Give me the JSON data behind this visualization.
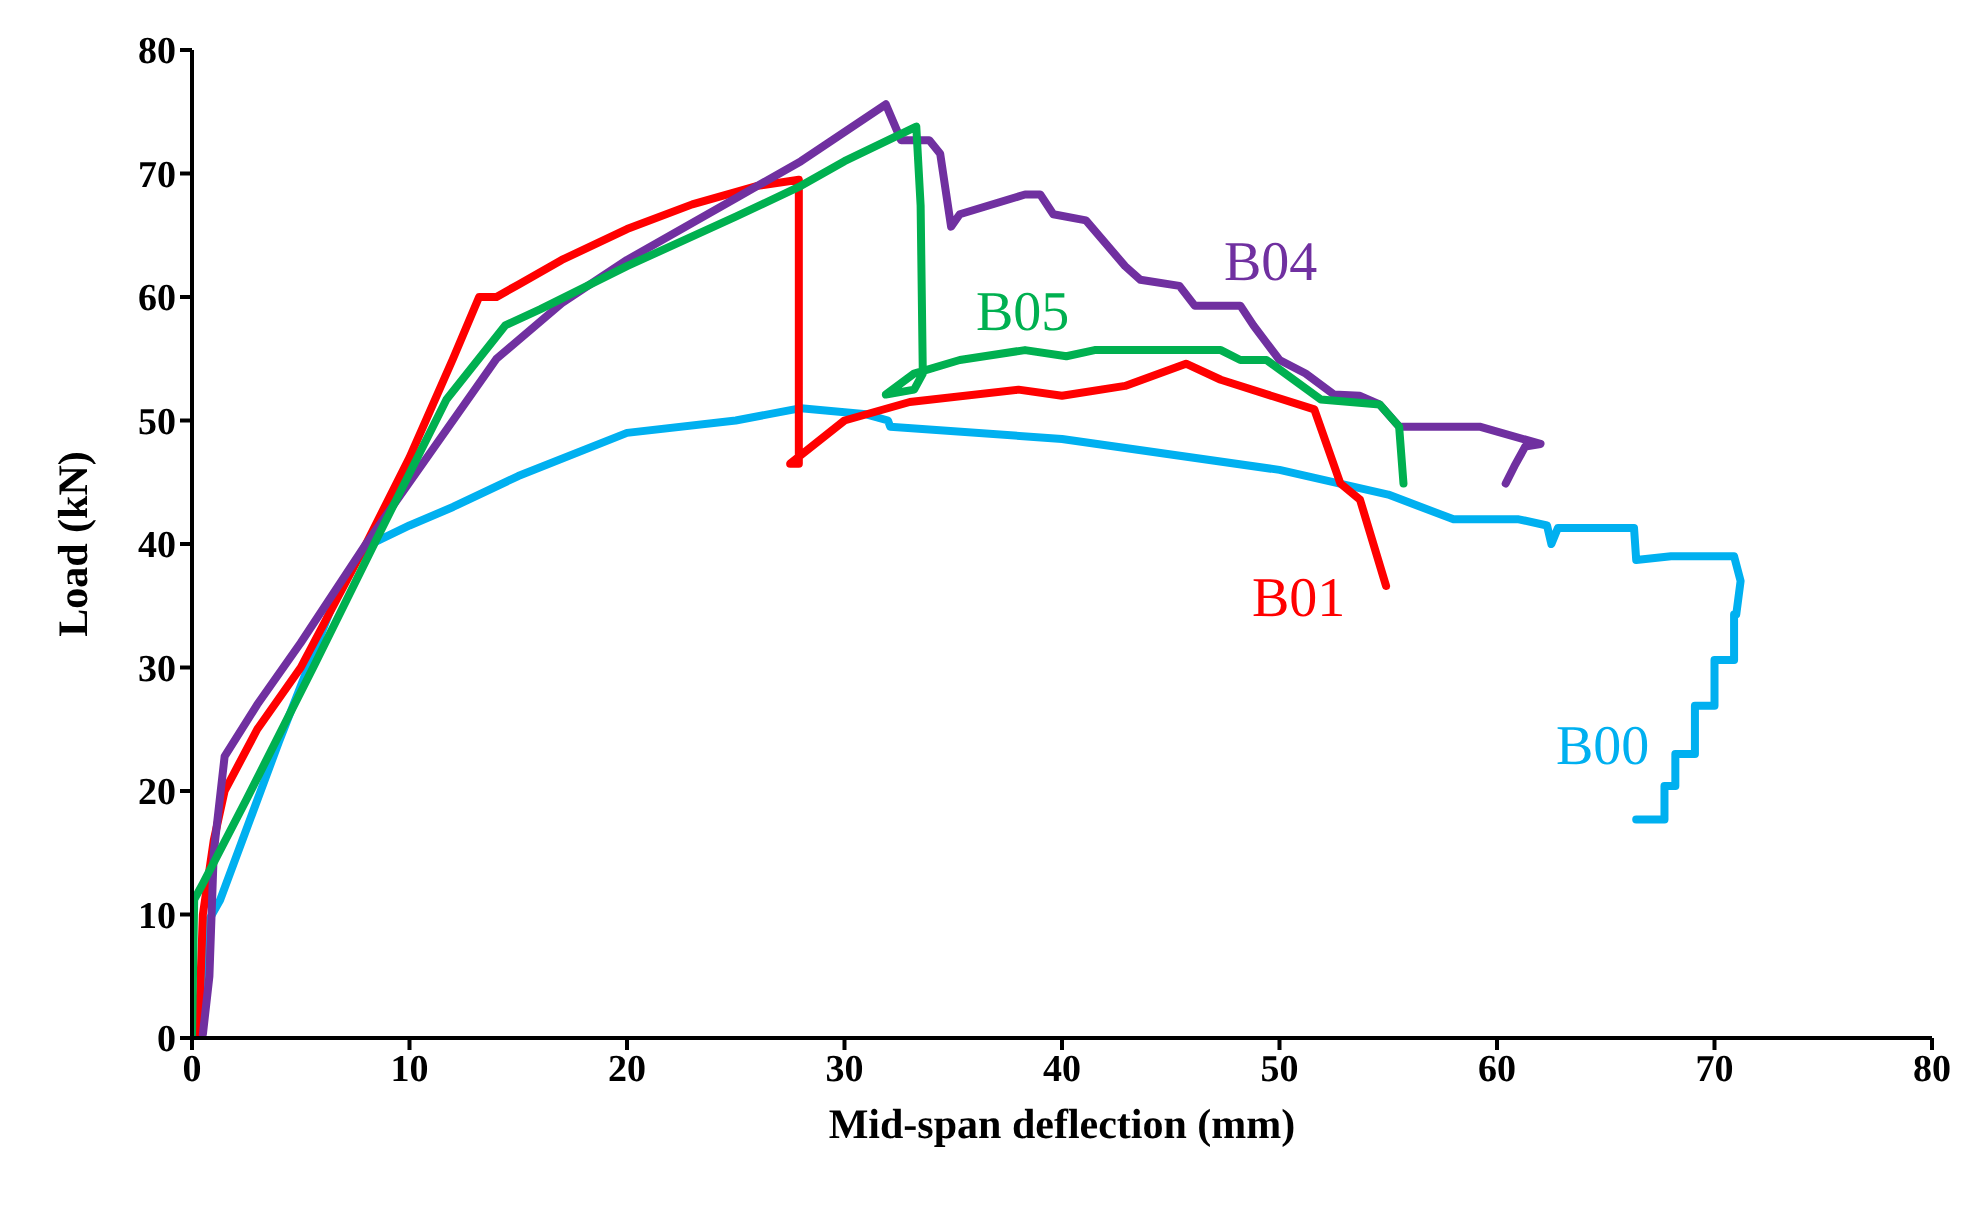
{
  "chart_data": {
    "type": "line",
    "xlabel": "Mid-span deflection (mm)",
    "ylabel": "Load (kN)",
    "xlim": [
      0,
      80
    ],
    "xticks": [
      0,
      10,
      20,
      30,
      40,
      50,
      60,
      70,
      80
    ],
    "ylim": [
      0,
      80
    ],
    "yticks": [
      0,
      10,
      20,
      30,
      40,
      50,
      60,
      70,
      80
    ],
    "grid": false,
    "marker": "none",
    "line_style": "solid",
    "series": [
      {
        "name": "B00",
        "color": "#00b0f0",
        "x": [
          0.3,
          0.6,
          1.3,
          4,
          6.8,
          8,
          10,
          12,
          15,
          20,
          25,
          28,
          31,
          32,
          32.1,
          40,
          50,
          55,
          58,
          61,
          62.3,
          62.5,
          62.8,
          66.3,
          66.4,
          68,
          70.9,
          71.2,
          71,
          70.9,
          70.9,
          70,
          70,
          69.1,
          69.1,
          68.2,
          68.2,
          67.7,
          67.7,
          66.4
        ],
        "values": [
          0,
          9,
          11.2,
          24,
          36.6,
          39.8,
          41.5,
          43,
          45.5,
          49,
          50,
          51,
          50.5,
          50,
          49.5,
          48.5,
          46,
          44,
          42,
          42,
          41.5,
          40,
          41.3,
          41.3,
          38.7,
          39,
          39,
          37,
          34.3,
          34.3,
          30.6,
          30.6,
          26.9,
          26.9,
          23,
          23,
          20.4,
          20.4,
          17.7,
          17.7
        ]
      },
      {
        "name": "B01",
        "color": "#ff0000",
        "x": [
          0.3,
          0.5,
          1,
          1.5,
          3,
          5,
          8,
          10,
          12,
          13.2,
          14,
          15,
          17,
          20,
          23,
          26,
          27.9,
          27.9,
          27.5,
          30,
          33,
          38,
          40,
          42.9,
          45.7,
          47.3,
          51.6,
          52.8,
          53.7,
          54.9
        ],
        "values": [
          0,
          10,
          16,
          20,
          25,
          30,
          40,
          47,
          55,
          60,
          60,
          61,
          63,
          65.5,
          67.5,
          69,
          69.5,
          46.5,
          46.5,
          50,
          51.5,
          52.5,
          52,
          52.8,
          54.6,
          53.3,
          50.9,
          44.9,
          43.6,
          36.6
        ]
      },
      {
        "name": "B04",
        "color": "#7030a0",
        "x": [
          0.5,
          0.8,
          1,
          1.5,
          3,
          5,
          8,
          10,
          12,
          14,
          17,
          20,
          25,
          28,
          31.9,
          32.6,
          33.9,
          34.4,
          34.9,
          35.3,
          38.3,
          39,
          39.6,
          41.1,
          42.9,
          43.6,
          45.4,
          46.1,
          48.2,
          48.8,
          50,
          51.2,
          52.5,
          53.7,
          54.6,
          55.5,
          59.2,
          62,
          61.3,
          60.8,
          60.4
        ],
        "values": [
          0.3,
          5,
          15,
          22.8,
          27,
          32,
          40,
          45,
          50,
          55,
          59.5,
          63,
          68,
          71,
          75.6,
          72.7,
          72.7,
          71.6,
          65.7,
          66.7,
          68.3,
          68.3,
          66.7,
          66.2,
          62.5,
          61.4,
          60.9,
          59.3,
          59.3,
          57.7,
          54.9,
          53.8,
          52.1,
          52,
          51.3,
          49.5,
          49.5,
          48.1,
          47.9,
          46.3,
          44.9
        ]
      },
      {
        "name": "B05",
        "color": "#00b050",
        "x": [
          0,
          0.1,
          0.5,
          2.5,
          5.6,
          8.6,
          11.7,
          14.4,
          16,
          20,
          25,
          28,
          30,
          33.3,
          33.5,
          33.6,
          33.2,
          31.9,
          33.2,
          35.3,
          38.3,
          40.2,
          41.5,
          47.3,
          48.2,
          49.4,
          51.9,
          54.6,
          55.5,
          55.7
        ],
        "values": [
          0,
          11.2,
          12.5,
          19.3,
          30.1,
          40.8,
          51.7,
          57.7,
          59,
          62.5,
          66.5,
          69,
          71,
          73.8,
          67.4,
          53.8,
          52.5,
          52.1,
          53.8,
          54.9,
          55.7,
          55.2,
          55.7,
          55.7,
          54.9,
          54.9,
          51.7,
          51.3,
          49.5,
          44.9
        ]
      }
    ]
  }
}
